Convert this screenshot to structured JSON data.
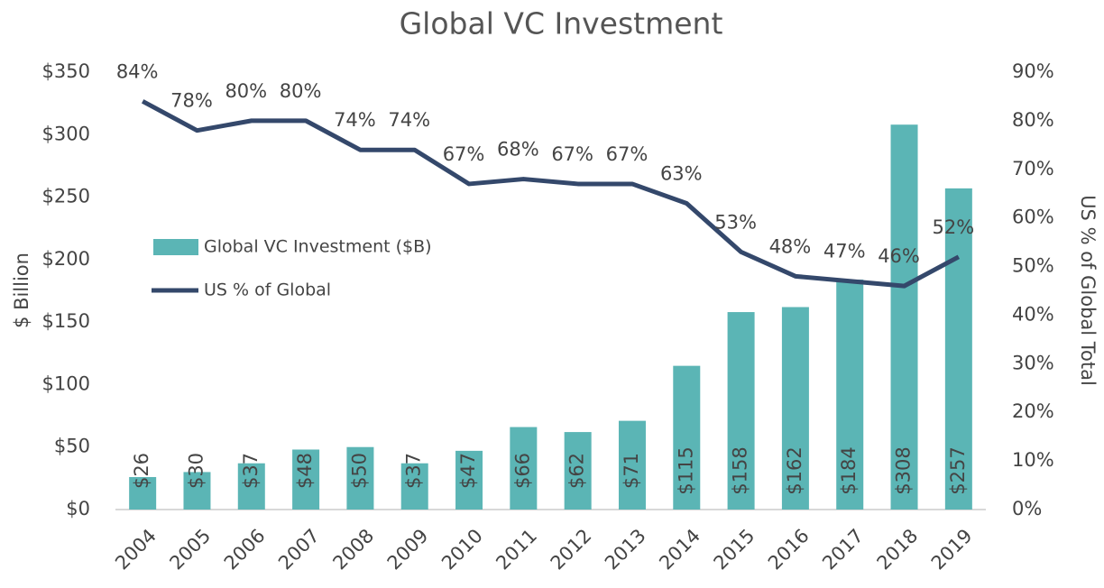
{
  "chart_data": {
    "type": "combo",
    "title": "Global VC Investment",
    "y_label": "$ Billion",
    "y2_label": "US % of Global Total",
    "categories": [
      "2004",
      "2005",
      "2006",
      "2007",
      "2008",
      "2009",
      "2010",
      "2011",
      "2012",
      "2013",
      "2014",
      "2015",
      "2016",
      "2017",
      "2018",
      "2019"
    ],
    "series": [
      {
        "name": "Global VC Investment ($B)",
        "type": "bar",
        "color": "#5bb5b5",
        "values": [
          26,
          30,
          37,
          48,
          50,
          37,
          47,
          66,
          62,
          71,
          115,
          158,
          162,
          184,
          308,
          257
        ],
        "value_labels": [
          "$26",
          "$30",
          "$37",
          "$48",
          "$50",
          "$37",
          "$47",
          "$66",
          "$62",
          "$71",
          "$115",
          "$158",
          "$162",
          "$184",
          "$308",
          "$257"
        ]
      },
      {
        "name": "US % of Global",
        "type": "line",
        "axis": "y2",
        "color": "#34486b",
        "values": [
          84,
          78,
          80,
          80,
          74,
          74,
          67,
          68,
          67,
          67,
          63,
          53,
          48,
          47,
          46,
          52
        ],
        "value_labels": [
          "84%",
          "78%",
          "80%",
          "80%",
          "74%",
          "74%",
          "67%",
          "68%",
          "67%",
          "67%",
          "63%",
          "53%",
          "48%",
          "47%",
          "46%",
          "52%"
        ]
      }
    ],
    "ylim": [
      0,
      350
    ],
    "yticks": [
      {
        "value": 0,
        "label": "$0"
      },
      {
        "value": 50,
        "label": "$50"
      },
      {
        "value": 100,
        "label": "$100"
      },
      {
        "value": 150,
        "label": "$150"
      },
      {
        "value": 200,
        "label": "$200"
      },
      {
        "value": 250,
        "label": "$250"
      },
      {
        "value": 300,
        "label": "$300"
      },
      {
        "value": 350,
        "label": "$350"
      }
    ],
    "y2lim": [
      0,
      90
    ],
    "y2ticks": [
      {
        "value": 0,
        "label": "0%"
      },
      {
        "value": 10,
        "label": "10%"
      },
      {
        "value": 20,
        "label": "20%"
      },
      {
        "value": 30,
        "label": "30%"
      },
      {
        "value": 40,
        "label": "40%"
      },
      {
        "value": 50,
        "label": "50%"
      },
      {
        "value": 60,
        "label": "60%"
      },
      {
        "value": 70,
        "label": "70%"
      },
      {
        "value": 80,
        "label": "80%"
      },
      {
        "value": 90,
        "label": "90%"
      }
    ]
  }
}
